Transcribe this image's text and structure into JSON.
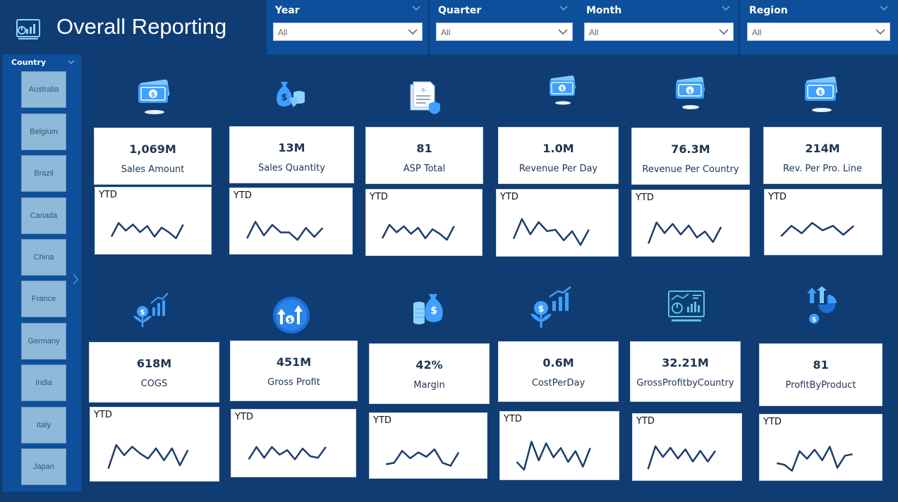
{
  "header": {
    "title": "Overall Reporting"
  },
  "filters": [
    {
      "label": "Year",
      "value": "All"
    },
    {
      "label": "Quarter",
      "value": "All"
    },
    {
      "label": "Month",
      "value": "All"
    },
    {
      "label": "Region",
      "value": "All"
    }
  ],
  "sidebar": {
    "title": "Country",
    "countries": [
      "Australia",
      "Belgium",
      "Brazil",
      "Canada",
      "China",
      "France",
      "Germany",
      "India",
      "Italy",
      "Japan"
    ]
  },
  "kpis": [
    {
      "icon": "money-bill-icon",
      "value": "1,069M",
      "label": "Sales Amount",
      "spark_label": "YTD"
    },
    {
      "icon": "money-bags-icon",
      "value": "13M",
      "label": "Sales Quantity",
      "spark_label": "YTD"
    },
    {
      "icon": "invoice-shield-icon",
      "value": "81",
      "label": "ASP Total",
      "spark_label": "YTD"
    },
    {
      "icon": "money-bill-icon",
      "value": "1.0M",
      "label": "Revenue Per Day",
      "spark_label": "YTD"
    },
    {
      "icon": "money-bill-icon",
      "value": "76.3M",
      "label": "Revenue Per Country",
      "spark_label": "YTD"
    },
    {
      "icon": "money-bill-icon",
      "value": "214M",
      "label": "Rev. Per Pro. Line",
      "spark_label": "YTD"
    },
    {
      "icon": "growth-plant-icon",
      "value": "618M",
      "label": "COGS",
      "spark_label": "YTD"
    },
    {
      "icon": "profit-circle-icon",
      "value": "451M",
      "label": "Gross Profit",
      "spark_label": "YTD"
    },
    {
      "icon": "coins-bag-icon",
      "value": "42%",
      "label": "Margin",
      "spark_label": "YTD"
    },
    {
      "icon": "growth-plant-icon",
      "value": "0.6M",
      "label": "CostPerDay",
      "spark_label": "YTD"
    },
    {
      "icon": "dashboard-screen-icon",
      "value": "32.21M",
      "label": "GrossProfitbyCountry",
      "spark_label": "YTD"
    },
    {
      "icon": "arrow-pie-icon",
      "value": "81",
      "label": "ProfitByProduct",
      "spark_label": "YTD"
    }
  ],
  "sparklines": [
    [
      0.3,
      0.75,
      0.5,
      0.7,
      0.45,
      0.65,
      0.3,
      0.6,
      0.45,
      0.25,
      0.7
    ],
    [
      0.25,
      0.8,
      0.35,
      0.7,
      0.45,
      0.45,
      0.2,
      0.6,
      0.3,
      0.6
    ],
    [
      0.3,
      0.75,
      0.5,
      0.7,
      0.45,
      0.65,
      0.3,
      0.6,
      0.45,
      0.25,
      0.7
    ],
    [
      0.3,
      0.95,
      0.45,
      0.85,
      0.55,
      0.6,
      0.25,
      0.55,
      0.1,
      0.6
    ],
    [
      0.15,
      0.85,
      0.5,
      0.8,
      0.45,
      0.75,
      0.35,
      0.55,
      0.2,
      0.7
    ],
    [
      0.35,
      0.7,
      0.45,
      0.8,
      0.55,
      0.7,
      0.4,
      0.7
    ],
    [
      0.1,
      0.8,
      0.5,
      0.75,
      0.55,
      0.4,
      0.7,
      0.35,
      0.7,
      0.2,
      0.65
    ],
    [
      0.3,
      0.7,
      0.35,
      0.7,
      0.45,
      0.6,
      0.3,
      0.65,
      0.4,
      0.35,
      0.7
    ],
    [
      0.2,
      0.25,
      0.65,
      0.4,
      0.6,
      0.45,
      0.7,
      0.25,
      0.15,
      0.6
    ],
    [
      0.3,
      0.05,
      0.95,
      0.35,
      0.9,
      0.45,
      0.75,
      0.3,
      0.65,
      0.15,
      0.75
    ],
    [
      0.1,
      0.85,
      0.5,
      0.8,
      0.45,
      0.75,
      0.35,
      0.7,
      0.35,
      0.7
    ],
    [
      0.3,
      0.25,
      0.05,
      0.7,
      0.45,
      0.75,
      0.4,
      0.85,
      0.15,
      0.55,
      0.6
    ]
  ]
}
